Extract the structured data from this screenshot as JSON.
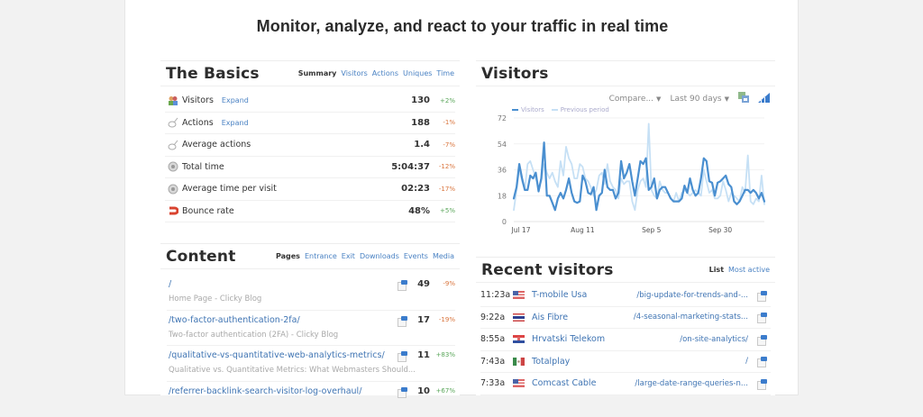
{
  "headline": "Monitor, analyze, and react to your traffic in real time",
  "basics": {
    "title": "The Basics",
    "tabs": [
      {
        "label": "Summary",
        "active": true
      },
      {
        "label": "Visitors",
        "active": false
      },
      {
        "label": "Actions",
        "active": false
      },
      {
        "label": "Uniques",
        "active": false
      },
      {
        "label": "Time",
        "active": false
      }
    ],
    "rows": [
      {
        "icon": "visitors-icon",
        "label": "Visitors",
        "expand": "Expand",
        "value": "130",
        "change": "+2%",
        "trend": "pos"
      },
      {
        "icon": "actions-icon",
        "label": "Actions",
        "expand": "Expand",
        "value": "188",
        "change": "-1%",
        "trend": "neg"
      },
      {
        "icon": "actions-icon",
        "label": "Average actions",
        "expand": "",
        "value": "1.4",
        "change": "-7%",
        "trend": "neg"
      },
      {
        "icon": "clock-icon",
        "label": "Total time",
        "expand": "",
        "value": "5:04:37",
        "change": "-12%",
        "trend": "neg"
      },
      {
        "icon": "clock-icon",
        "label": "Average time per visit",
        "expand": "",
        "value": "02:23",
        "change": "-17%",
        "trend": "neg"
      },
      {
        "icon": "bounce-icon",
        "label": "Bounce rate",
        "expand": "",
        "value": "48%",
        "change": "+5%",
        "trend": "pos"
      }
    ]
  },
  "visitors": {
    "title": "Visitors",
    "compare_label": "Compare...",
    "range_label": "Last 90 days",
    "arrow": "▼",
    "legend": [
      "Visitors",
      "Previous period"
    ],
    "colors": {
      "visitors": "#4a8fd0",
      "previous": "#c6e0f5"
    }
  },
  "chart_data": {
    "type": "line",
    "title": "Visitors",
    "xlabel": "",
    "ylabel": "",
    "ylim": [
      0,
      72
    ],
    "yticks": [
      0,
      18,
      36,
      54,
      72
    ],
    "xticks": [
      "Jul 17",
      "Aug 11",
      "Sep 5",
      "Sep 30"
    ],
    "xtick_index": [
      0,
      25,
      50,
      75
    ],
    "legend_position": "top-left",
    "grid": true,
    "series": [
      {
        "name": "Visitors",
        "values": [
          16,
          24,
          40,
          30,
          22,
          22,
          32,
          30,
          34,
          21,
          30,
          55,
          18,
          18,
          13,
          8,
          16,
          20,
          16,
          22,
          30,
          20,
          14,
          13,
          14,
          32,
          28,
          20,
          19,
          24,
          8,
          18,
          20,
          36,
          24,
          22,
          22,
          16,
          20,
          42,
          30,
          34,
          40,
          28,
          18,
          30,
          42,
          40,
          44,
          22,
          24,
          30,
          16,
          22,
          24,
          24,
          20,
          16,
          14,
          14,
          14,
          16,
          25,
          20,
          30,
          22,
          18,
          20,
          30,
          44,
          42,
          28,
          27,
          18,
          27,
          28,
          30,
          32,
          26,
          24,
          14,
          12,
          14,
          18,
          22,
          22,
          20,
          22,
          20,
          16,
          20,
          14
        ],
        "note": "daily values estimated from pixels"
      },
      {
        "name": "Previous period",
        "values": [
          8,
          22,
          36,
          28,
          22,
          40,
          42,
          36,
          30,
          24,
          28,
          40,
          34,
          30,
          34,
          28,
          24,
          42,
          32,
          52,
          44,
          40,
          30,
          30,
          40,
          38,
          30,
          28,
          24,
          18,
          22,
          32,
          34,
          26,
          40,
          28,
          24,
          22,
          16,
          30,
          26,
          28,
          28,
          14,
          8,
          22,
          28,
          30,
          24,
          68,
          22,
          18,
          16,
          28,
          22,
          20,
          20,
          16,
          14,
          20,
          14,
          20,
          22,
          20,
          18,
          20,
          22,
          20,
          18,
          36,
          28,
          20,
          22,
          16,
          16,
          18,
          28,
          22,
          14,
          20,
          18,
          16,
          14,
          24,
          20,
          46,
          14,
          12,
          16,
          14,
          32,
          12
        ]
      }
    ]
  },
  "content": {
    "title": "Content",
    "tabs": [
      {
        "label": "Pages",
        "active": true
      },
      {
        "label": "Entrance",
        "active": false
      },
      {
        "label": "Exit",
        "active": false
      },
      {
        "label": "Downloads",
        "active": false
      },
      {
        "label": "Events",
        "active": false
      },
      {
        "label": "Media",
        "active": false
      }
    ],
    "rows": [
      {
        "path": "/",
        "title": "Home Page - Clicky Blog",
        "count": "49",
        "change": "-9%",
        "trend": "neg"
      },
      {
        "path": "/two-factor-authentication-2fa/",
        "title": "Two-factor authentication (2FA) - Clicky Blog",
        "count": "17",
        "change": "-19%",
        "trend": "neg"
      },
      {
        "path": "/qualitative-vs-quantitative-web-analytics-metrics/",
        "title": "Qualitative vs. Quantitative Metrics: What Webmasters Should...",
        "count": "11",
        "change": "+83%",
        "trend": "pos"
      },
      {
        "path": "/referrer-backlink-search-visitor-log-overhaul/",
        "title": "",
        "count": "10",
        "change": "+67%",
        "trend": "pos"
      }
    ]
  },
  "recent": {
    "title": "Recent visitors",
    "tabs": [
      {
        "label": "List",
        "active": true
      },
      {
        "label": "Most active",
        "active": false
      }
    ],
    "rows": [
      {
        "time": "11:23a",
        "flag": "us",
        "isp": "T-mobile Usa",
        "path": "/big-update-for-trends-and-..."
      },
      {
        "time": "9:22a",
        "flag": "th",
        "isp": "Ais Fibre",
        "path": "/4-seasonal-marketing-stats..."
      },
      {
        "time": "8:55a",
        "flag": "hr",
        "isp": "Hrvatski Telekom",
        "path": "/on-site-analytics/"
      },
      {
        "time": "7:43a",
        "flag": "mx",
        "isp": "Totalplay",
        "path": "/"
      },
      {
        "time": "7:33a",
        "flag": "us",
        "isp": "Comcast Cable",
        "path": "/large-date-range-queries-n..."
      }
    ]
  }
}
